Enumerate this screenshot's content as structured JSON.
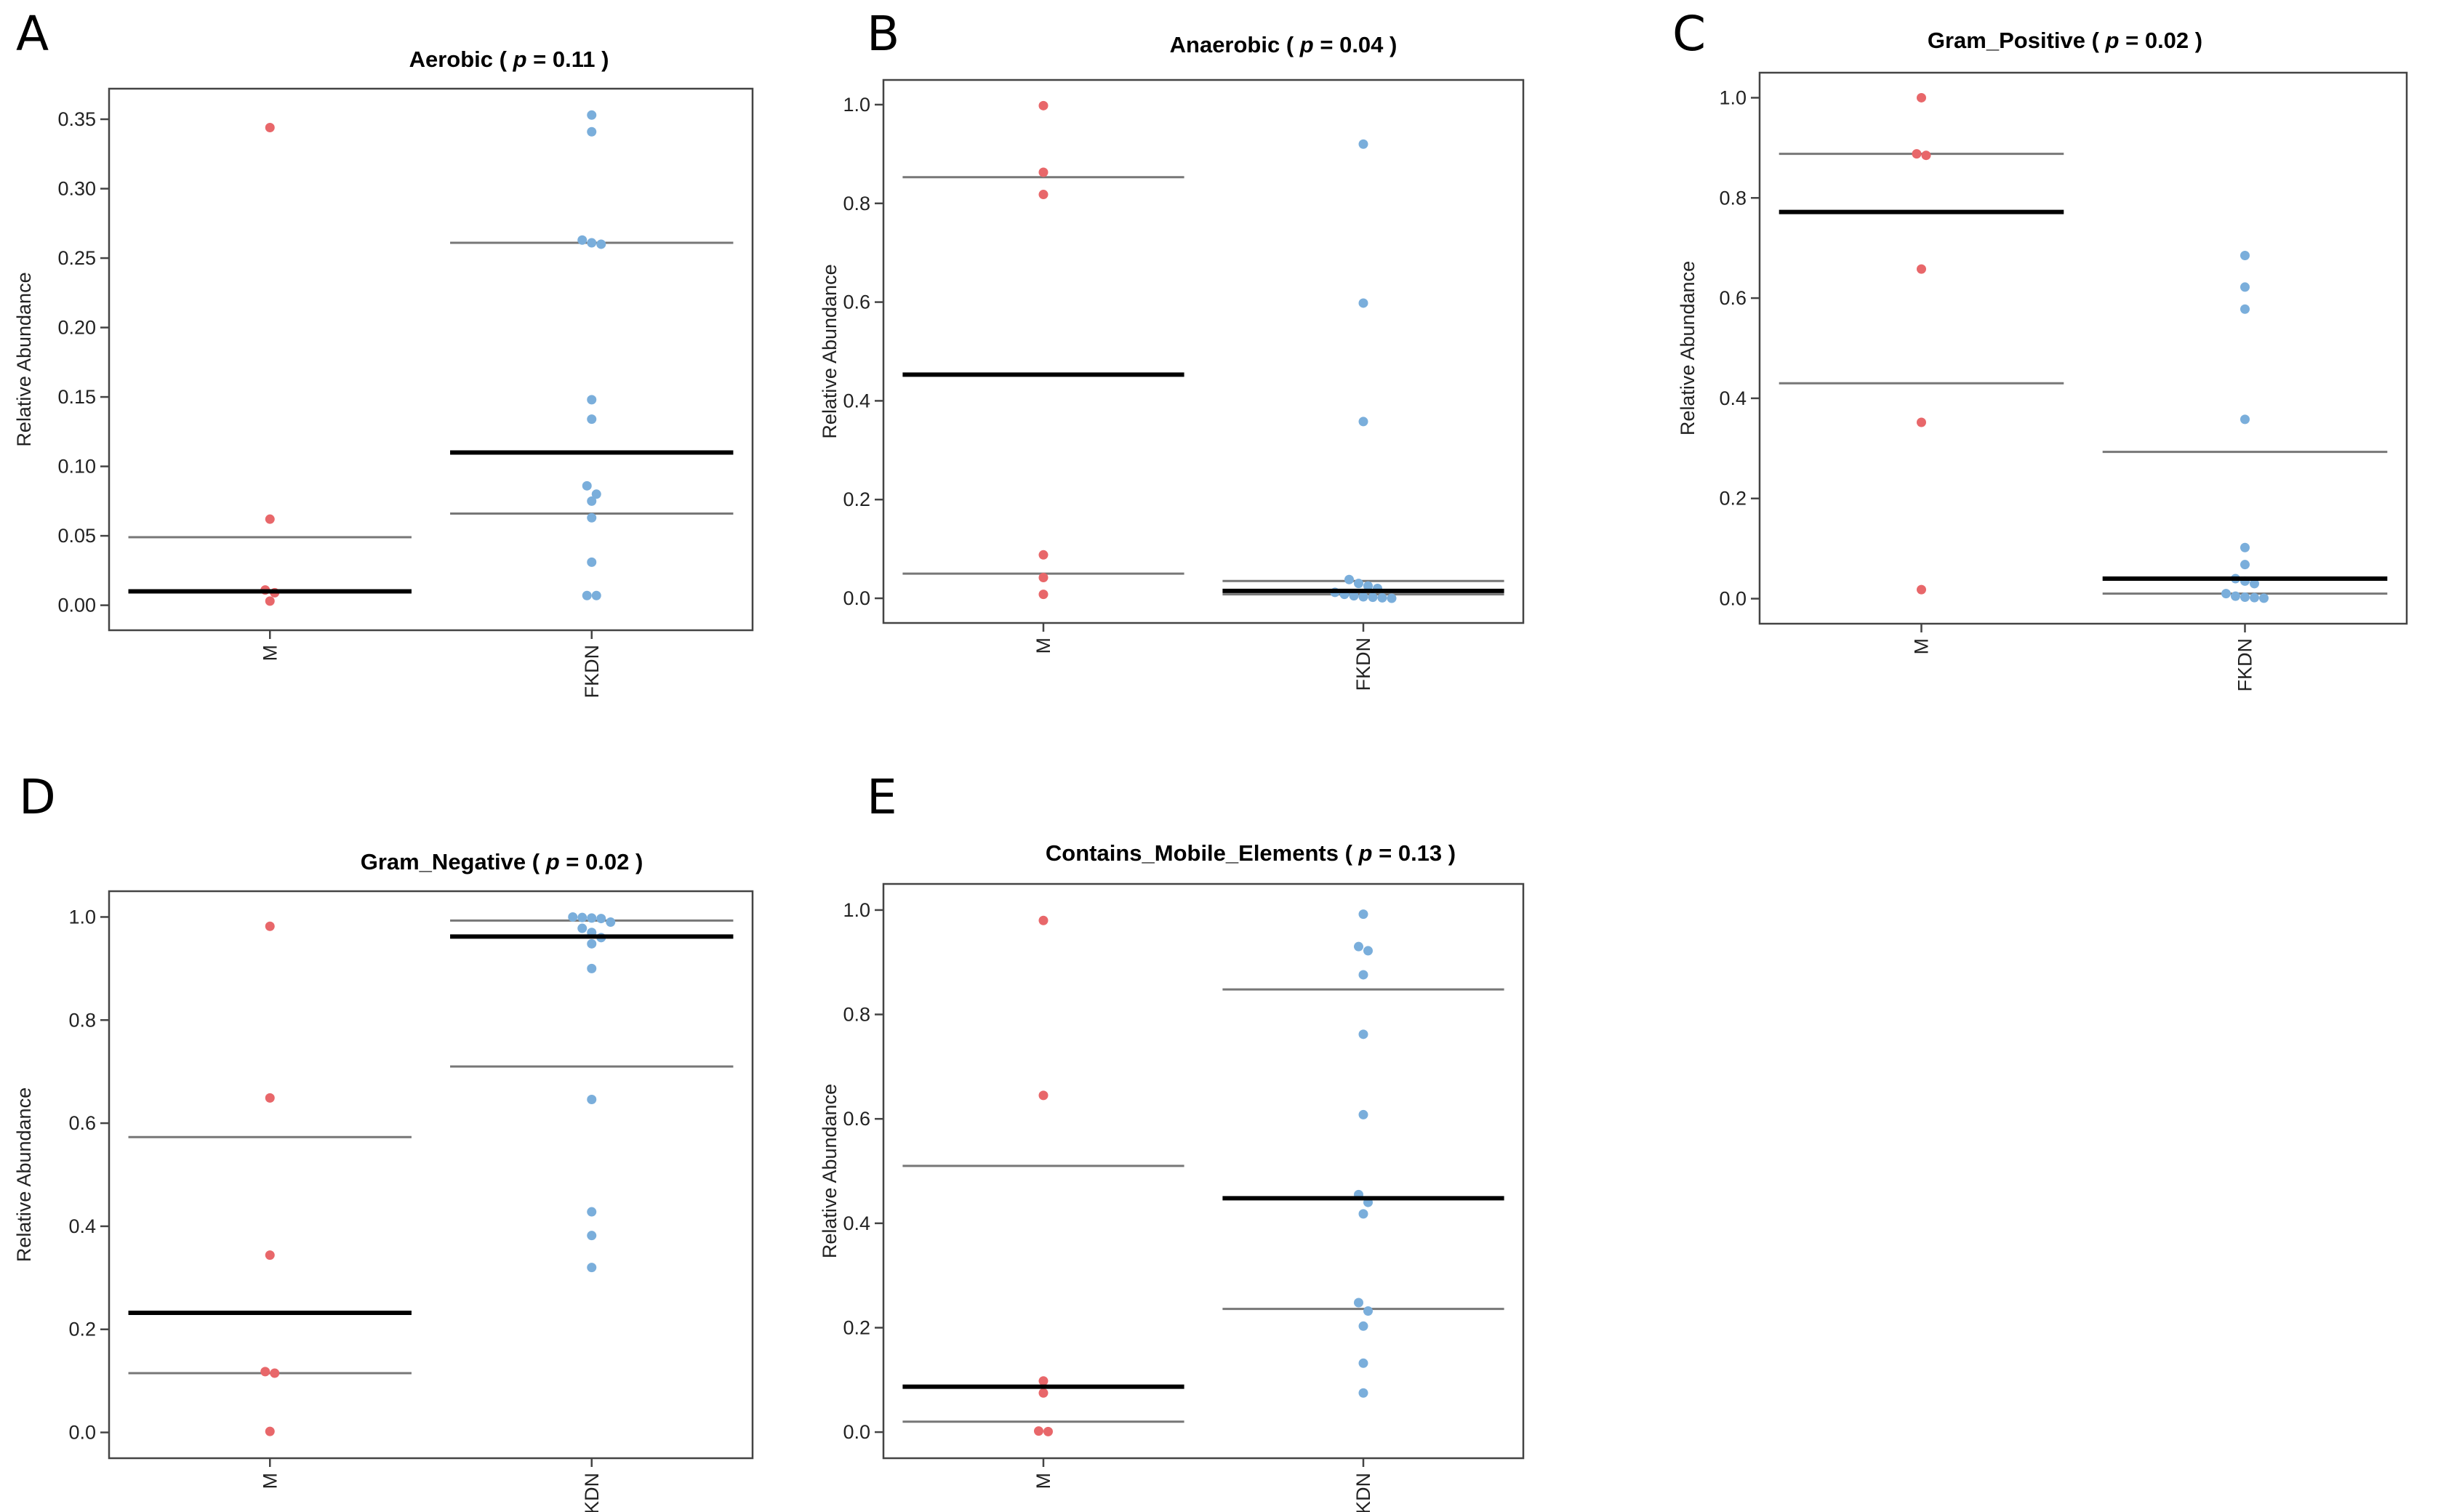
{
  "chart_data": [
    {
      "type": "scatter",
      "panel": "A",
      "title": "Aerobic",
      "p_label": "p",
      "p_value": "= 0.11",
      "ylabel": "Relative Abundance",
      "categories": [
        "M",
        "FKDN"
      ],
      "ylim": [
        -0.018,
        0.372
      ],
      "yticks": [
        "0.00",
        "0.05",
        "0.10",
        "0.15",
        "0.20",
        "0.25",
        "0.30",
        "0.35"
      ],
      "groups": [
        {
          "name": "M",
          "color": "#e8676a",
          "points": [
            0.344,
            0.062,
            0.011,
            0.009,
            0.003
          ],
          "median": 0.01,
          "q1": 0.01,
          "q3": 0.049
        },
        {
          "name": "FKDN",
          "color": "#7aaedb",
          "points": [
            0.353,
            0.341,
            0.263,
            0.26,
            0.261,
            0.148,
            0.134,
            0.086,
            0.08,
            0.075,
            0.063,
            0.031,
            0.007,
            0.007
          ],
          "median": 0.11,
          "q1": 0.066,
          "q3": 0.261
        }
      ]
    },
    {
      "type": "scatter",
      "panel": "B",
      "title": "Anaerobic",
      "p_label": "p",
      "p_value": "= 0.04",
      "ylabel": "Relative Abundance",
      "categories": [
        "M",
        "FKDN"
      ],
      "ylim": [
        -0.05,
        1.05
      ],
      "yticks": [
        "0.0",
        "0.2",
        "0.4",
        "0.6",
        "0.8",
        "1.0"
      ],
      "groups": [
        {
          "name": "M",
          "color": "#e8676a",
          "points": [
            0.998,
            0.863,
            0.818,
            0.088,
            0.042,
            0.008
          ],
          "median": 0.453,
          "q1": 0.05,
          "q3": 0.853
        },
        {
          "name": "FKDN",
          "color": "#7aaedb",
          "points": [
            0.92,
            0.598,
            0.358,
            0.038,
            0.03,
            0.025,
            0.02,
            0.012,
            0.008,
            0.005,
            0.003,
            0.002,
            0.001,
            0.0
          ],
          "median": 0.015,
          "q1": 0.008,
          "q3": 0.035
        }
      ]
    },
    {
      "type": "scatter",
      "panel": "C",
      "title": "Gram_Positive",
      "p_label": "p",
      "p_value": "= 0.02",
      "ylabel": "Relative Abundance",
      "categories": [
        "M",
        "FKDN"
      ],
      "ylim": [
        -0.05,
        1.05
      ],
      "yticks": [
        "0.0",
        "0.2",
        "0.4",
        "0.6",
        "0.8",
        "1.0"
      ],
      "groups": [
        {
          "name": "M",
          "color": "#e8676a",
          "points": [
            1.0,
            0.885,
            0.888,
            0.658,
            0.352,
            0.018
          ],
          "median": 0.772,
          "q1": 0.43,
          "q3": 0.888
        },
        {
          "name": "FKDN",
          "color": "#7aaedb",
          "points": [
            0.685,
            0.622,
            0.578,
            0.358,
            0.102,
            0.068,
            0.04,
            0.035,
            0.03,
            0.01,
            0.005,
            0.003,
            0.002,
            0.001
          ],
          "median": 0.04,
          "q1": 0.01,
          "q3": 0.293
        }
      ]
    },
    {
      "type": "scatter",
      "panel": "D",
      "title": "Gram_Negative",
      "p_label": "p",
      "p_value": "= 0.02",
      "ylabel": "Relative Abundance",
      "categories": [
        "M",
        "FKDN"
      ],
      "ylim": [
        -0.05,
        1.05
      ],
      "yticks": [
        "0.0",
        "0.2",
        "0.4",
        "0.6",
        "0.8",
        "1.0"
      ],
      "groups": [
        {
          "name": "M",
          "color": "#e8676a",
          "points": [
            0.982,
            0.649,
            0.344,
            0.118,
            0.115,
            0.002
          ],
          "median": 0.232,
          "q1": 0.115,
          "q3": 0.573
        },
        {
          "name": "FKDN",
          "color": "#7aaedb",
          "points": [
            1.0,
            0.999,
            0.998,
            0.997,
            0.99,
            0.978,
            0.97,
            0.96,
            0.948,
            0.9,
            0.646,
            0.428,
            0.382,
            0.32
          ],
          "median": 0.962,
          "q1": 0.71,
          "q3": 0.993
        }
      ]
    },
    {
      "type": "scatter",
      "panel": "E",
      "title": "Contains_Mobile_Elements",
      "p_label": "p",
      "p_value": "= 0.13",
      "ylabel": "Relative Abundance",
      "categories": [
        "M",
        "FKDN"
      ],
      "ylim": [
        -0.05,
        1.05
      ],
      "yticks": [
        "0.0",
        "0.2",
        "0.4",
        "0.6",
        "0.8",
        "1.0"
      ],
      "groups": [
        {
          "name": "M",
          "color": "#e8676a",
          "points": [
            0.98,
            0.645,
            0.098,
            0.075,
            0.002,
            0.001
          ],
          "median": 0.087,
          "q1": 0.02,
          "q3": 0.51
        },
        {
          "name": "FKDN",
          "color": "#7aaedb",
          "points": [
            0.992,
            0.93,
            0.922,
            0.876,
            0.762,
            0.608,
            0.455,
            0.44,
            0.418,
            0.248,
            0.232,
            0.203,
            0.132,
            0.075
          ],
          "median": 0.448,
          "q1": 0.236,
          "q3": 0.848
        }
      ]
    }
  ]
}
